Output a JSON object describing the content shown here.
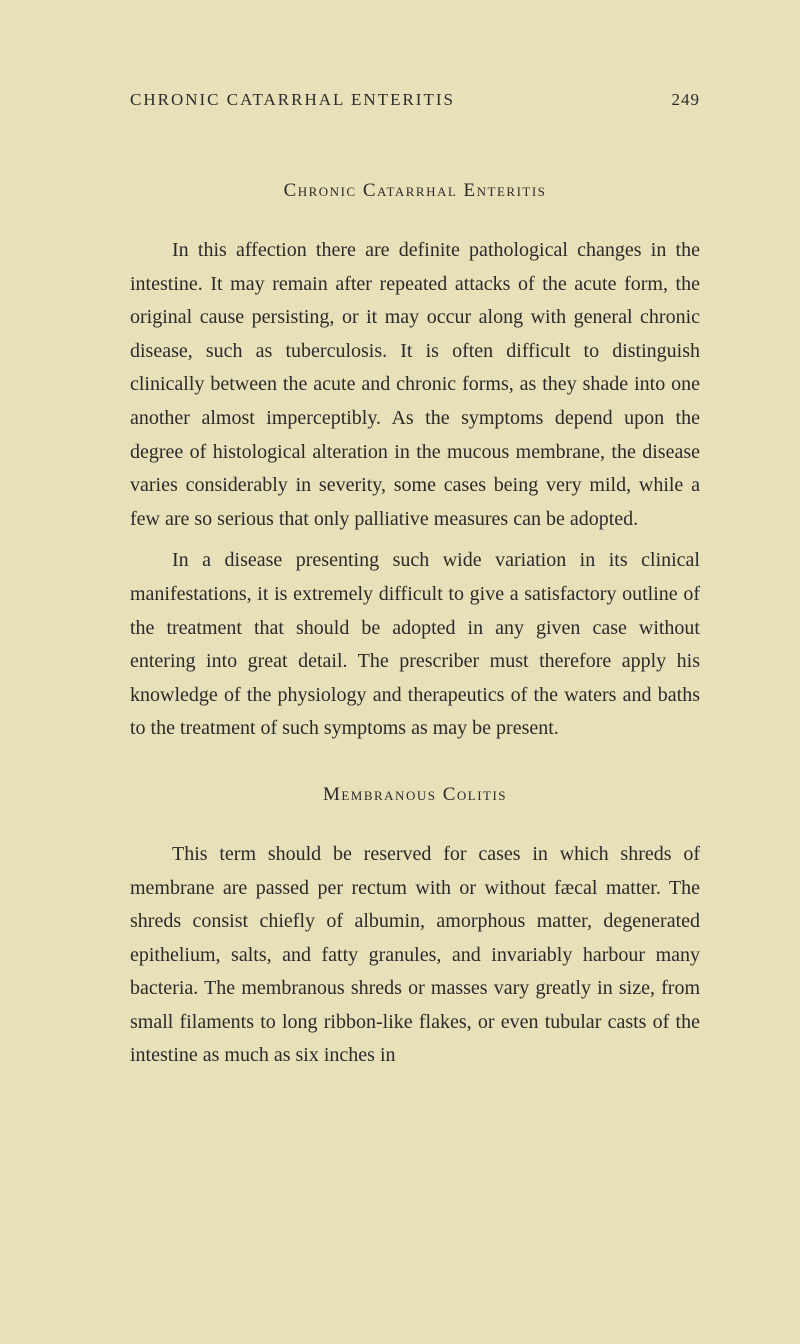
{
  "page": {
    "running_title": "CHRONIC CATARRHAL ENTERITIS",
    "page_number": "249",
    "background_color": "#e8e0b8",
    "text_color": "#2a2a2a"
  },
  "sections": [
    {
      "heading": "Chronic Catarrhal Enteritis",
      "paragraphs": [
        "In this affection there are definite pathological changes in the intestine. It may remain after repeated attacks of the acute form, the original cause persisting, or it may occur along with general chronic disease, such as tuberculosis. It is often difficult to distinguish clinically between the acute and chronic forms, as they shade into one another almost imperceptibly. As the symptoms depend upon the degree of histological alteration in the mucous membrane, the disease varies considerably in severity, some cases being very mild, while a few are so serious that only palliative measures can be adopted.",
        "In a disease presenting such wide variation in its clinical manifestations, it is extremely difficult to give a satisfactory outline of the treatment that should be adopted in any given case without entering into great detail. The prescriber must therefore apply his knowledge of the physiology and therapeutics of the waters and baths to the treatment of such symptoms as may be present."
      ]
    },
    {
      "heading": "Membranous Colitis",
      "paragraphs": [
        "This term should be reserved for cases in which shreds of membrane are passed per rectum with or without fæcal matter. The shreds consist chiefly of albumin, amorphous matter, degenerated epithelium, salts, and fatty granules, and invariably harbour many bacteria. The membranous shreds or masses vary greatly in size, from small filaments to long ribbon-like flakes, or even tubular casts of the intestine as much as six inches in"
      ]
    }
  ],
  "typography": {
    "body_fontsize": 20,
    "heading_fontsize": 19,
    "header_fontsize": 17,
    "line_height": 1.68,
    "font_family": "Georgia, Times New Roman, serif"
  }
}
